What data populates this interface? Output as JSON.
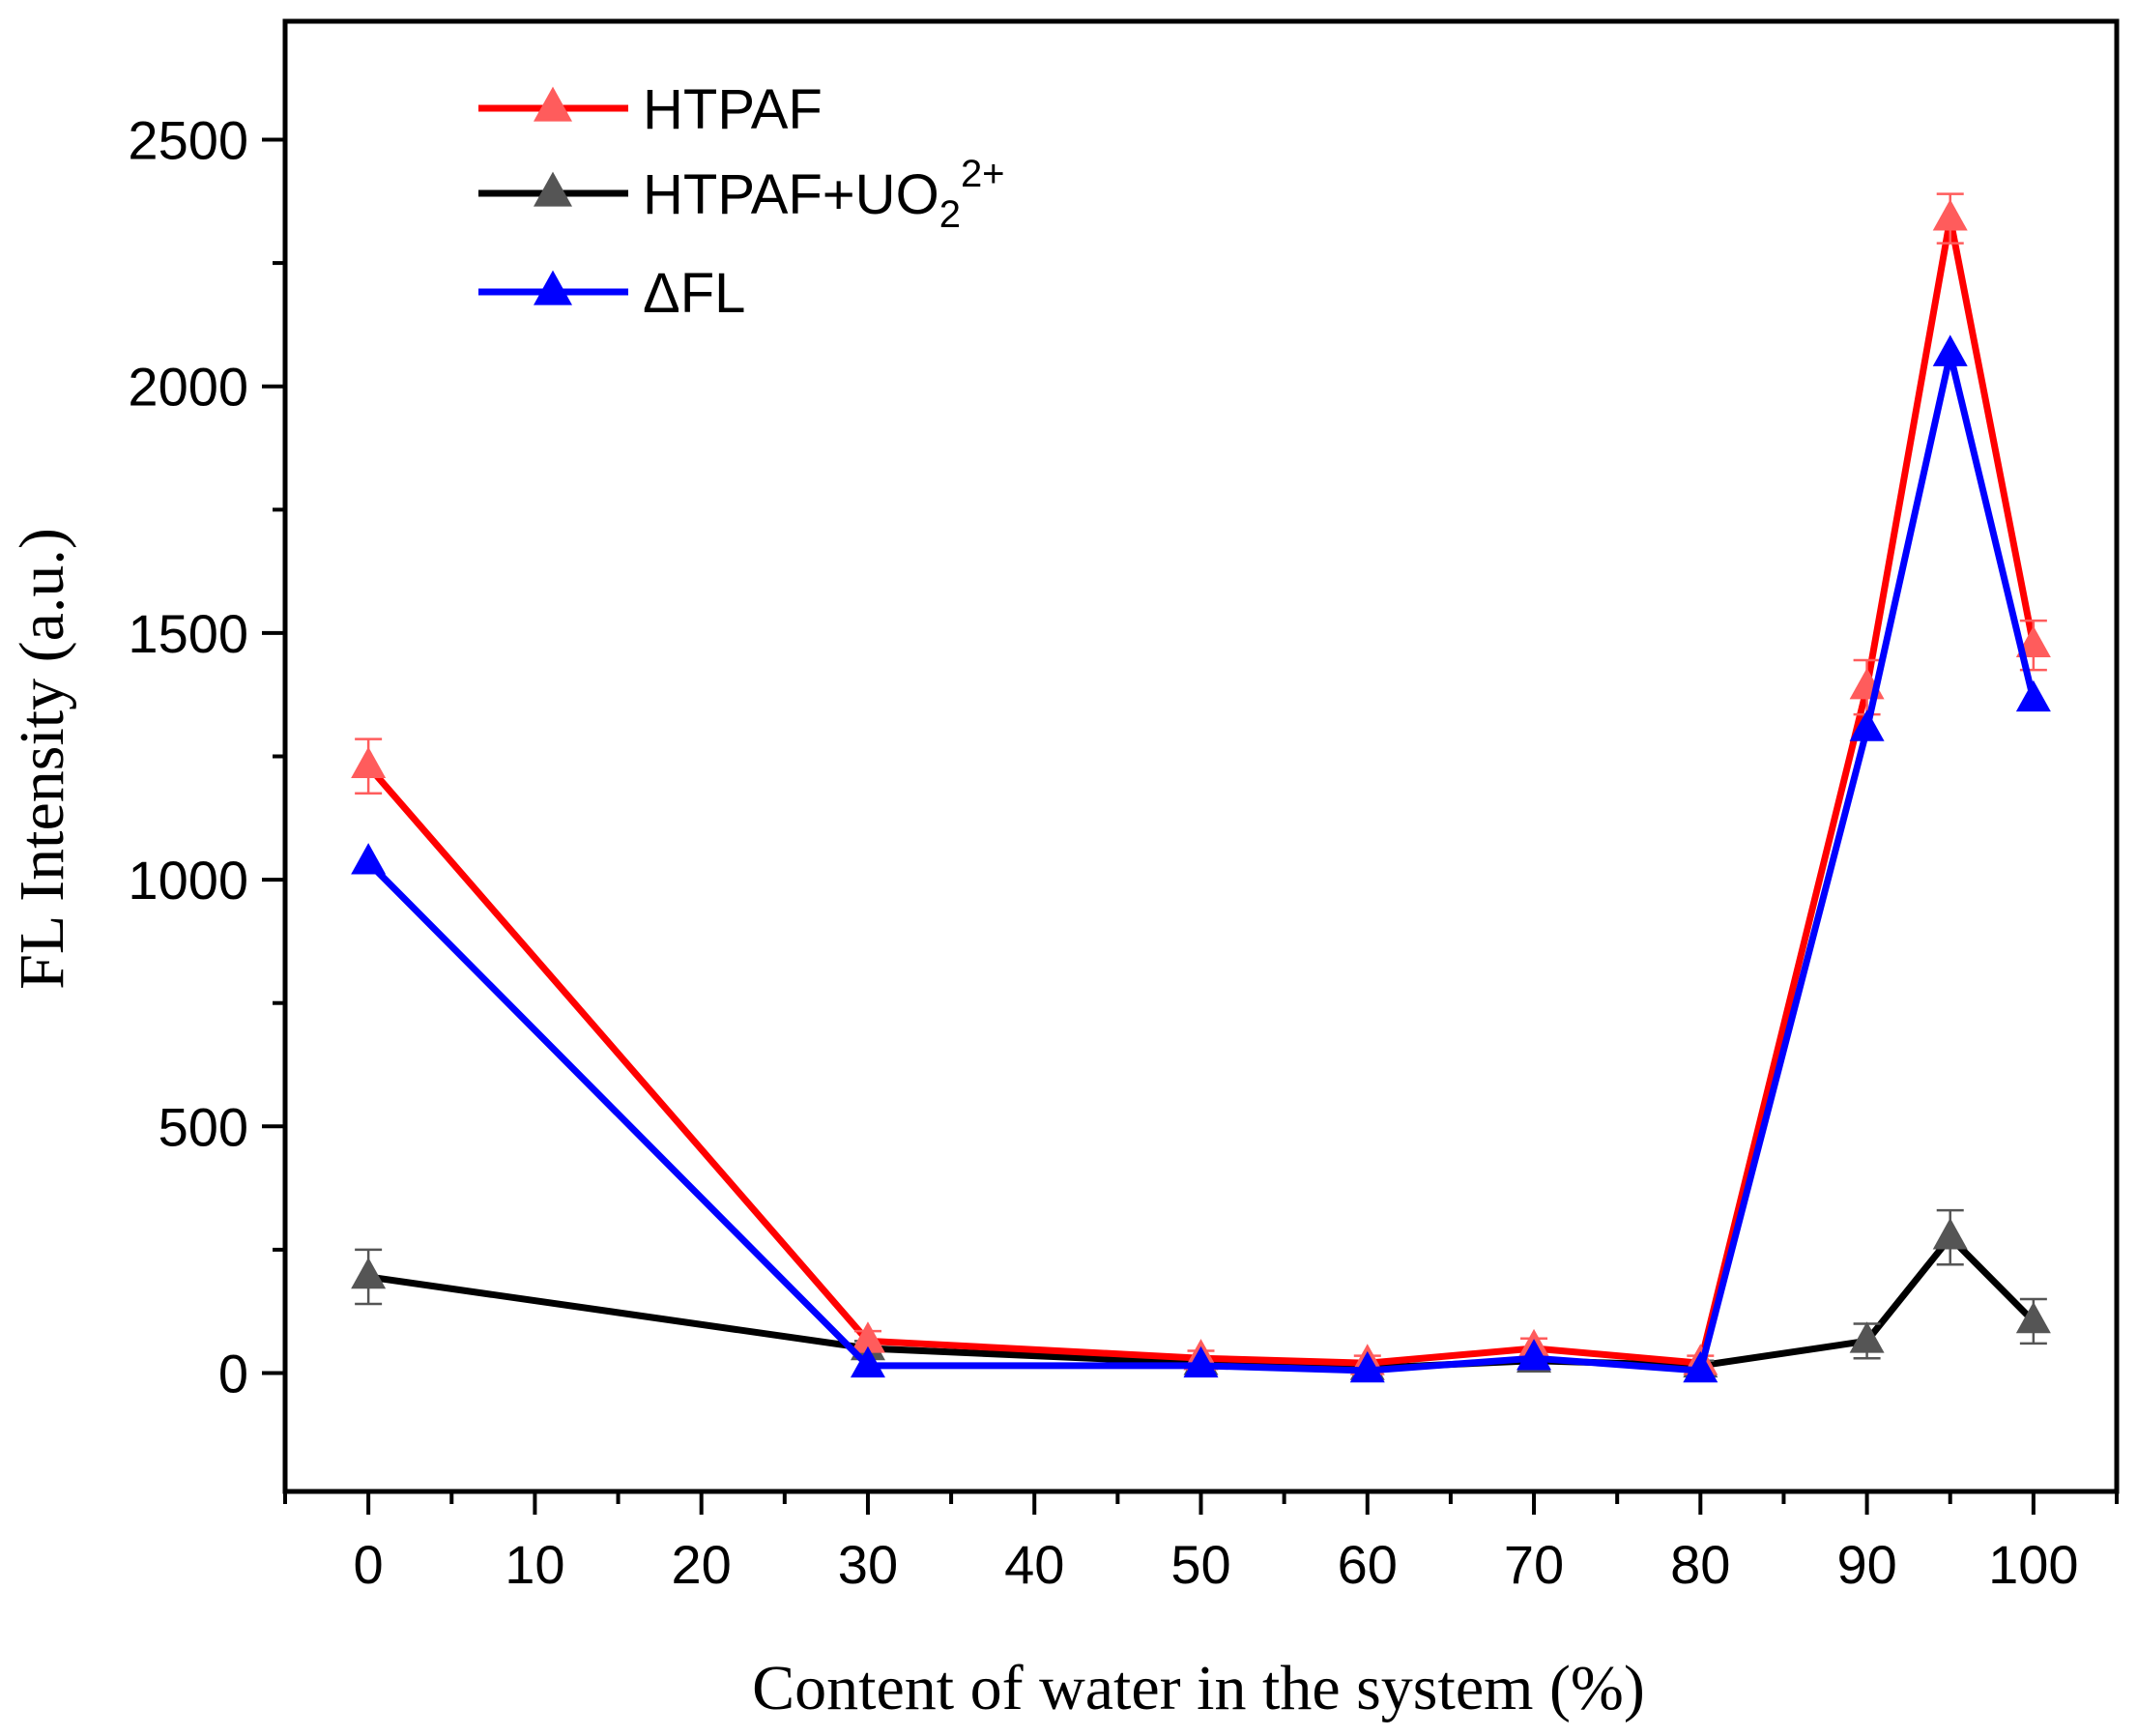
{
  "chart_data": {
    "type": "line",
    "title": "",
    "xlabel": "Content of water in the system (%)",
    "ylabel": "FL Intensity (a.u.)",
    "xlim": [
      -5,
      105
    ],
    "ylim": [
      -240,
      2740
    ],
    "xticks": [
      0,
      10,
      20,
      30,
      40,
      50,
      60,
      70,
      80,
      90,
      100
    ],
    "yticks": [
      0,
      500,
      1000,
      1500,
      2000,
      2500
    ],
    "grid": false,
    "legend_position": "top-left",
    "x": [
      0,
      30,
      50,
      60,
      70,
      80,
      90,
      95,
      100
    ],
    "series": [
      {
        "name": "HTPAF",
        "label_main": "HTPAF",
        "color": "#ff0000",
        "marker_color": "#ff5c5c",
        "values": [
          1230,
          65,
          30,
          20,
          50,
          20,
          1390,
          2340,
          1475
        ],
        "errors": [
          55,
          20,
          15,
          15,
          20,
          15,
          55,
          50,
          50
        ]
      },
      {
        "name": "HTPAF+UO22+",
        "label_main": "HTPAF+UO",
        "label_sub": "2",
        "label_sup": "2+",
        "color": "#000000",
        "marker_color": "#555555",
        "values": [
          195,
          50,
          20,
          10,
          25,
          15,
          65,
          275,
          105
        ],
        "errors": [
          55,
          15,
          10,
          10,
          15,
          10,
          35,
          55,
          45
        ]
      },
      {
        "name": "ΔFL",
        "label_main": "ΔFL",
        "color": "#0000ff",
        "marker_color": "#0000ff",
        "values": [
          1035,
          15,
          15,
          5,
          30,
          5,
          1305,
          2065,
          1365
        ],
        "errors": [
          0,
          0,
          0,
          0,
          0,
          0,
          0,
          0,
          0
        ]
      }
    ]
  }
}
